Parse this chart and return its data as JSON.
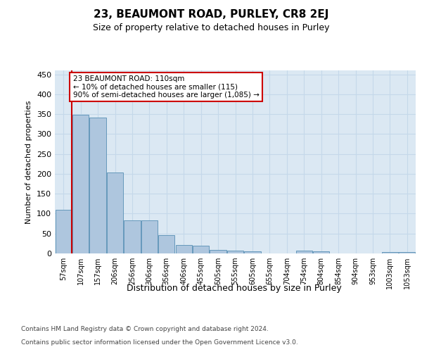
{
  "title": "23, BEAUMONT ROAD, PURLEY, CR8 2EJ",
  "subtitle": "Size of property relative to detached houses in Purley",
  "xlabel": "Distribution of detached houses by size in Purley",
  "ylabel": "Number of detached properties",
  "footer_line1": "Contains HM Land Registry data © Crown copyright and database right 2024.",
  "footer_line2": "Contains public sector information licensed under the Open Government Licence v3.0.",
  "categories": [
    "57sqm",
    "107sqm",
    "157sqm",
    "206sqm",
    "256sqm",
    "306sqm",
    "356sqm",
    "406sqm",
    "455sqm",
    "505sqm",
    "555sqm",
    "605sqm",
    "655sqm",
    "704sqm",
    "754sqm",
    "804sqm",
    "854sqm",
    "904sqm",
    "953sqm",
    "1003sqm",
    "1053sqm"
  ],
  "bar_values": [
    110,
    348,
    341,
    203,
    83,
    83,
    46,
    22,
    20,
    9,
    7,
    6,
    0,
    0,
    7,
    6,
    0,
    0,
    0,
    3,
    3
  ],
  "bar_color": "#aec6de",
  "bar_edge_color": "#6699bb",
  "grid_color": "#c5d8ea",
  "background_color": "#dbe8f3",
  "ann_line1": "23 BEAUMONT ROAD: 110sqm",
  "ann_line2": "← 10% of detached houses are smaller (115)",
  "ann_line3": "90% of semi-detached houses are larger (1,085) →",
  "ann_facecolor": "#ffffff",
  "ann_edgecolor": "#cc0000",
  "red_line_x": 0.5,
  "ylim": [
    0,
    460
  ],
  "yticks": [
    0,
    50,
    100,
    150,
    200,
    250,
    300,
    350,
    400,
    450
  ],
  "title_fontsize": 11,
  "subtitle_fontsize": 9,
  "ylabel_fontsize": 8,
  "xlabel_fontsize": 9,
  "tick_fontsize": 7,
  "ann_fontsize": 7.5,
  "footer_fontsize": 6.5
}
